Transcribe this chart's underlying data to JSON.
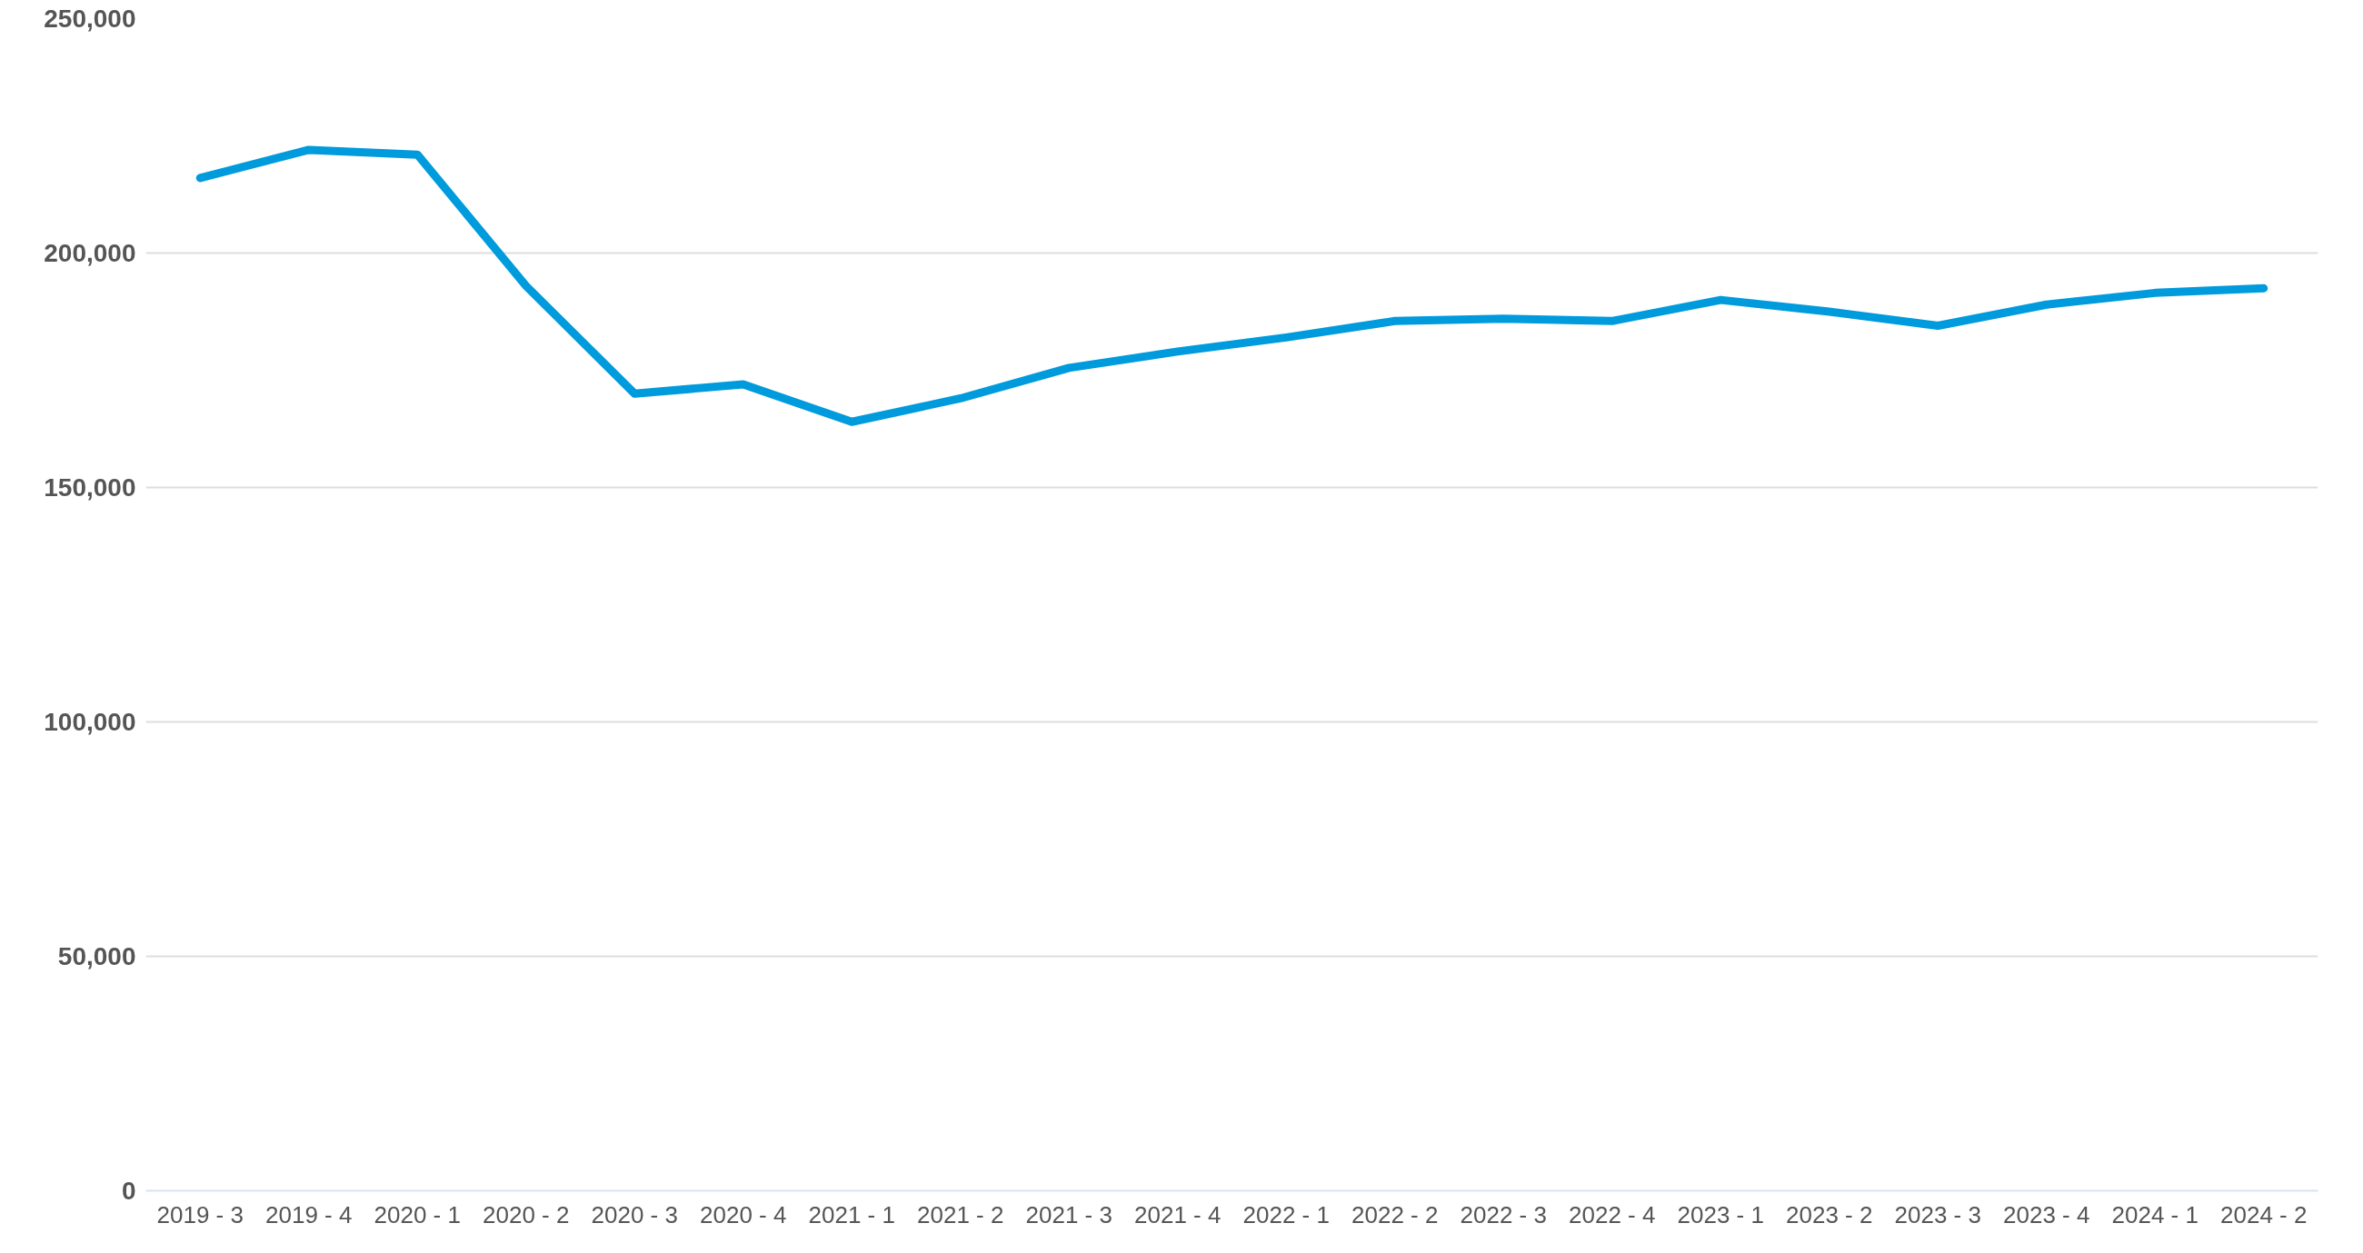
{
  "chart_data": {
    "type": "line",
    "categories": [
      "2019 - 3",
      "2019 - 4",
      "2020 - 1",
      "2020 - 2",
      "2020 - 3",
      "2020 - 4",
      "2021 - 1",
      "2021 - 2",
      "2021 - 3",
      "2021 - 4",
      "2022 - 1",
      "2022 - 2",
      "2022 - 3",
      "2022 - 4",
      "2023 - 1",
      "2023 - 2",
      "2023 - 3",
      "2023 - 4",
      "2024 - 1",
      "2024 - 2"
    ],
    "series": [
      {
        "color": "#009bdc",
        "values": [
          216000,
          222000,
          221000,
          193000,
          170000,
          172000,
          164000,
          169000,
          175500,
          179000,
          182000,
          185500,
          186000,
          185500,
          190000,
          187500,
          184500,
          189000,
          191500,
          192500
        ]
      }
    ],
    "ylim": [
      0,
      250000
    ],
    "yticks": [
      {
        "value": 0,
        "label": "0"
      },
      {
        "value": 50000,
        "label": "50,000"
      },
      {
        "value": 100000,
        "label": "100,000"
      },
      {
        "value": 150000,
        "label": "150,000"
      },
      {
        "value": 200000,
        "label": "200,000"
      },
      {
        "value": 250000,
        "label": "250,000"
      }
    ],
    "grid": "y",
    "marker": "none",
    "line_style": "solid"
  }
}
